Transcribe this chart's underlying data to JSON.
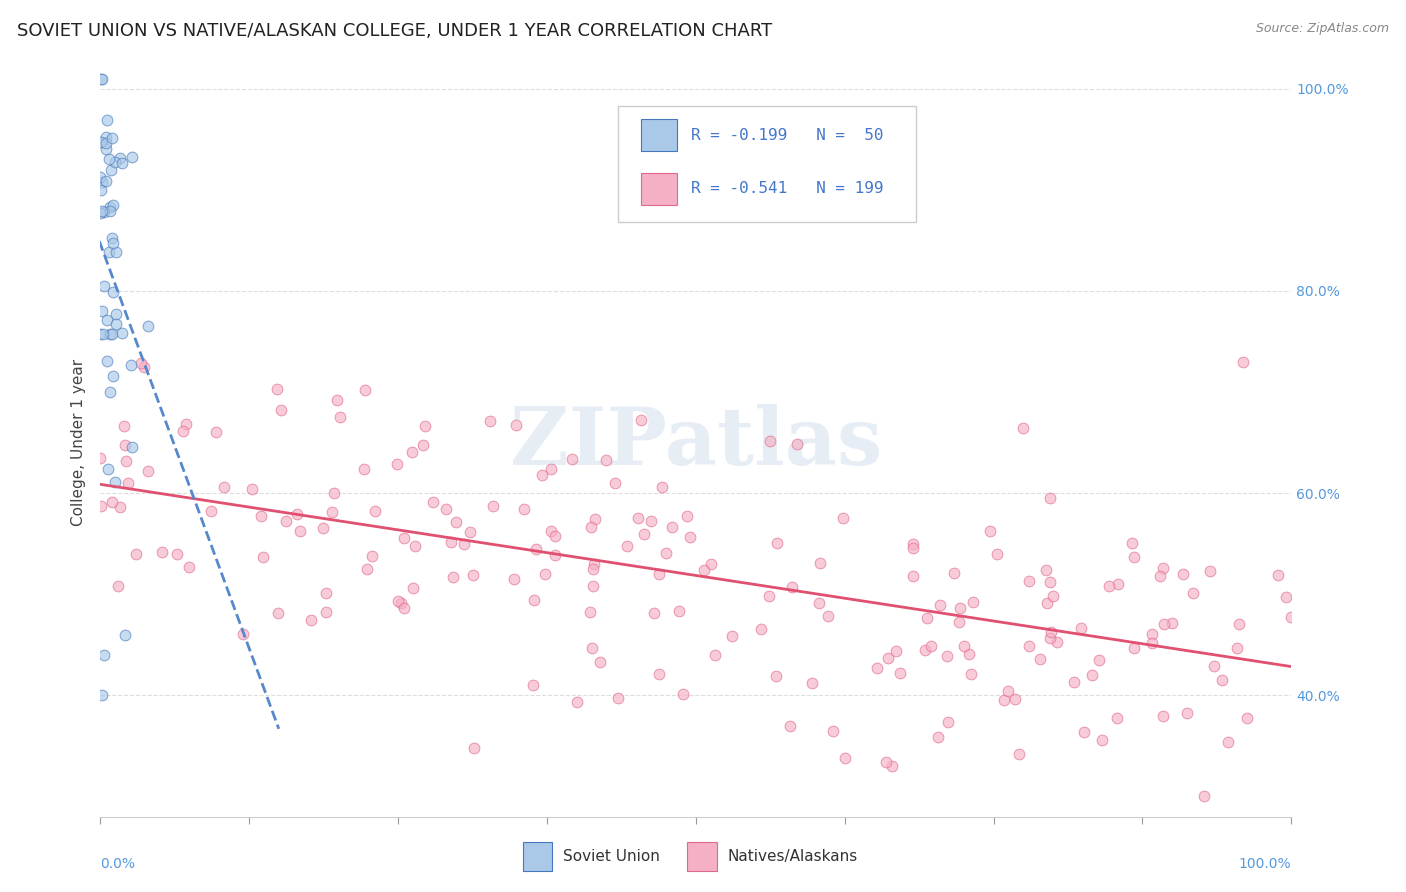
{
  "title": "SOVIET UNION VS NATIVE/ALASKAN COLLEGE, UNDER 1 YEAR CORRELATION CHART",
  "source": "Source: ZipAtlas.com",
  "ylabel": "College, Under 1 year",
  "background_color": "#ffffff",
  "grid_color": "#dddddd",
  "title_color": "#222222",
  "title_fontsize": 13,
  "watermark": "ZIPatlas",
  "watermark_color": "#c8d8e8",
  "soviet_color": "#aac8e8",
  "soviet_edge_color": "#4477bb",
  "native_color": "#f5b0c5",
  "native_edge_color": "#e06888",
  "soviet_line_color": "#5588cc",
  "native_line_color": "#e05070",
  "legend_label1": "Soviet Union",
  "legend_label2": "Natives/Alaskans",
  "soviet_N": 50,
  "native_N": 199,
  "marker_size": 60,
  "marker_alpha": 0.65,
  "right_ytick_color": "#5599dd",
  "right_ytick_fontsize": 10,
  "bottom_label_color": "#5599dd",
  "xlim": [
    0.0,
    1.0
  ],
  "ylim": [
    0.28,
    1.02
  ],
  "plot_ylim": [
    0.28,
    1.02
  ]
}
